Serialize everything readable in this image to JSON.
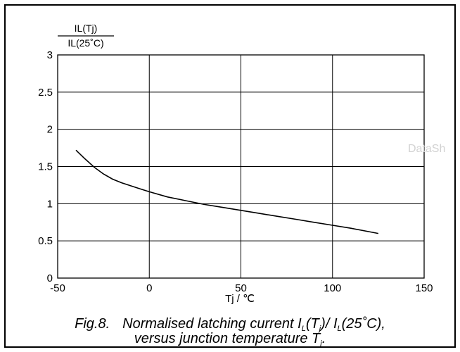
{
  "chart_data": {
    "type": "line",
    "title": "",
    "ylabel_numerator": "IL(Tj)",
    "ylabel_denominator": "IL(25˚C)",
    "xlabel": "Tj / ℃",
    "xlim": [
      -50,
      150
    ],
    "ylim": [
      0,
      3
    ],
    "grid": true,
    "x_ticks": [
      "-50",
      "0",
      "50",
      "100",
      "150"
    ],
    "y_ticks": [
      "0",
      "0.5",
      "1",
      "1.5",
      "2",
      "2.5",
      "3"
    ],
    "series": [
      {
        "x": [
          -40,
          -35,
          -30,
          -25,
          -20,
          -15,
          -10,
          -5,
          0,
          10,
          20,
          30,
          40,
          50,
          60,
          70,
          80,
          90,
          100,
          110,
          125
        ],
        "y": [
          1.72,
          1.6,
          1.49,
          1.4,
          1.33,
          1.28,
          1.24,
          1.2,
          1.16,
          1.09,
          1.04,
          0.99,
          0.95,
          0.91,
          0.87,
          0.83,
          0.79,
          0.75,
          0.71,
          0.67,
          0.6
        ]
      }
    ],
    "line_color": "#000000"
  },
  "caption": {
    "number": "Fig.8.",
    "line1_prefix": "Normalised latching current I",
    "line1_sub1": "L",
    "line1_mid1": "(T",
    "line1_sub2": "j",
    "line1_mid2": ")/ I",
    "line1_sub3": "L",
    "line1_suffix": "(25˚C),",
    "line2_prefix": "versus junction temperature T",
    "line2_sub": "j",
    "line2_suffix": "."
  },
  "watermark": "DataSh"
}
